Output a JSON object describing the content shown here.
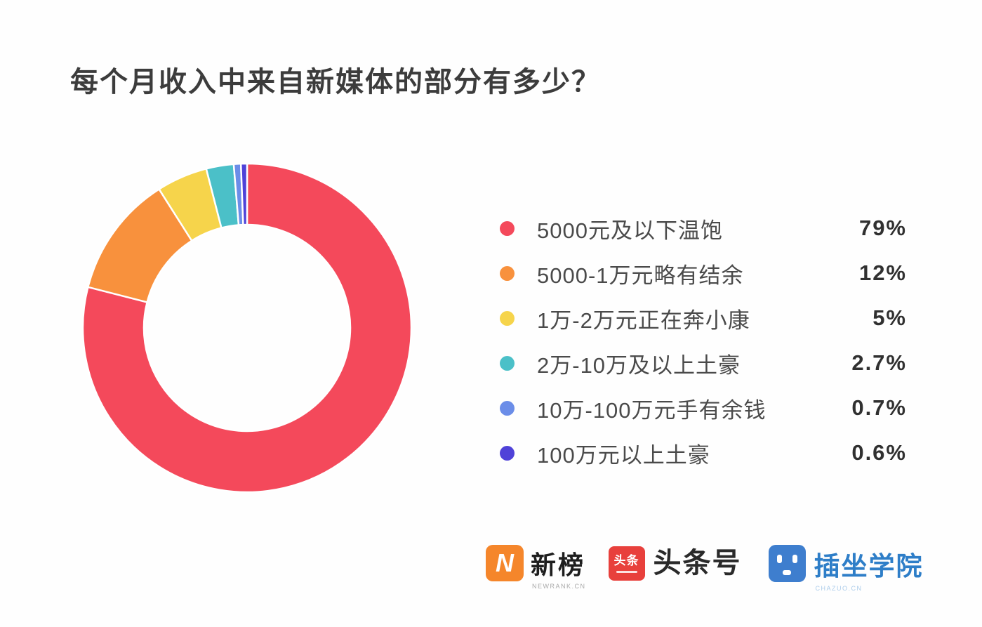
{
  "title": "每个月收入中来自新媒体的部分有多少？",
  "chart_data": {
    "type": "pie",
    "donut": true,
    "title": "每个月收入中来自新媒体的部分有多少？",
    "start_angle_deg": -90,
    "direction": "clockwise",
    "legend_position": "right",
    "categories": [
      "5000元及以下温饱",
      "5000-1万元略有结余",
      "1万-2万元正在奔小康",
      "2万-10万及以上土豪",
      "10万-100万元手有余钱",
      "100万元以上土豪"
    ],
    "values": [
      79,
      12,
      5,
      2.7,
      0.7,
      0.6
    ],
    "value_labels": [
      "79%",
      "12%",
      "5%",
      "2.7%",
      "0.7%",
      "0.6%"
    ],
    "colors": [
      "#f4495b",
      "#f8913d",
      "#f6d44b",
      "#4bc0c8",
      "#6b8de8",
      "#4f42d8"
    ]
  },
  "legend": {
    "items": [
      {
        "label": "5000元及以下温饱",
        "value_label": "79%",
        "color": "#f4495b"
      },
      {
        "label": "5000-1万元略有结余",
        "value_label": "12%",
        "color": "#f8913d"
      },
      {
        "label": "1万-2万元正在奔小康",
        "value_label": "5%",
        "color": "#f6d44b"
      },
      {
        "label": "2万-10万及以上土豪",
        "value_label": "2.7%",
        "color": "#4bc0c8"
      },
      {
        "label": "10万-100万元手有余钱",
        "value_label": "0.7%",
        "color": "#6b8de8"
      },
      {
        "label": "100万元以上土豪",
        "value_label": "0.6%",
        "color": "#4f42d8"
      }
    ]
  },
  "footer": {
    "logos": {
      "newrank": {
        "icon_letter": "N",
        "text": "新榜",
        "subtext": "NEWRANK.CN",
        "icon_color": "#f5862b"
      },
      "toutiao": {
        "icon_text": "头条",
        "text": "头条号",
        "icon_color": "#e8403c"
      },
      "chazuo": {
        "text": "插坐学院",
        "subtext": "CHAZUO.CN",
        "icon_color": "#3e7ece"
      }
    }
  }
}
